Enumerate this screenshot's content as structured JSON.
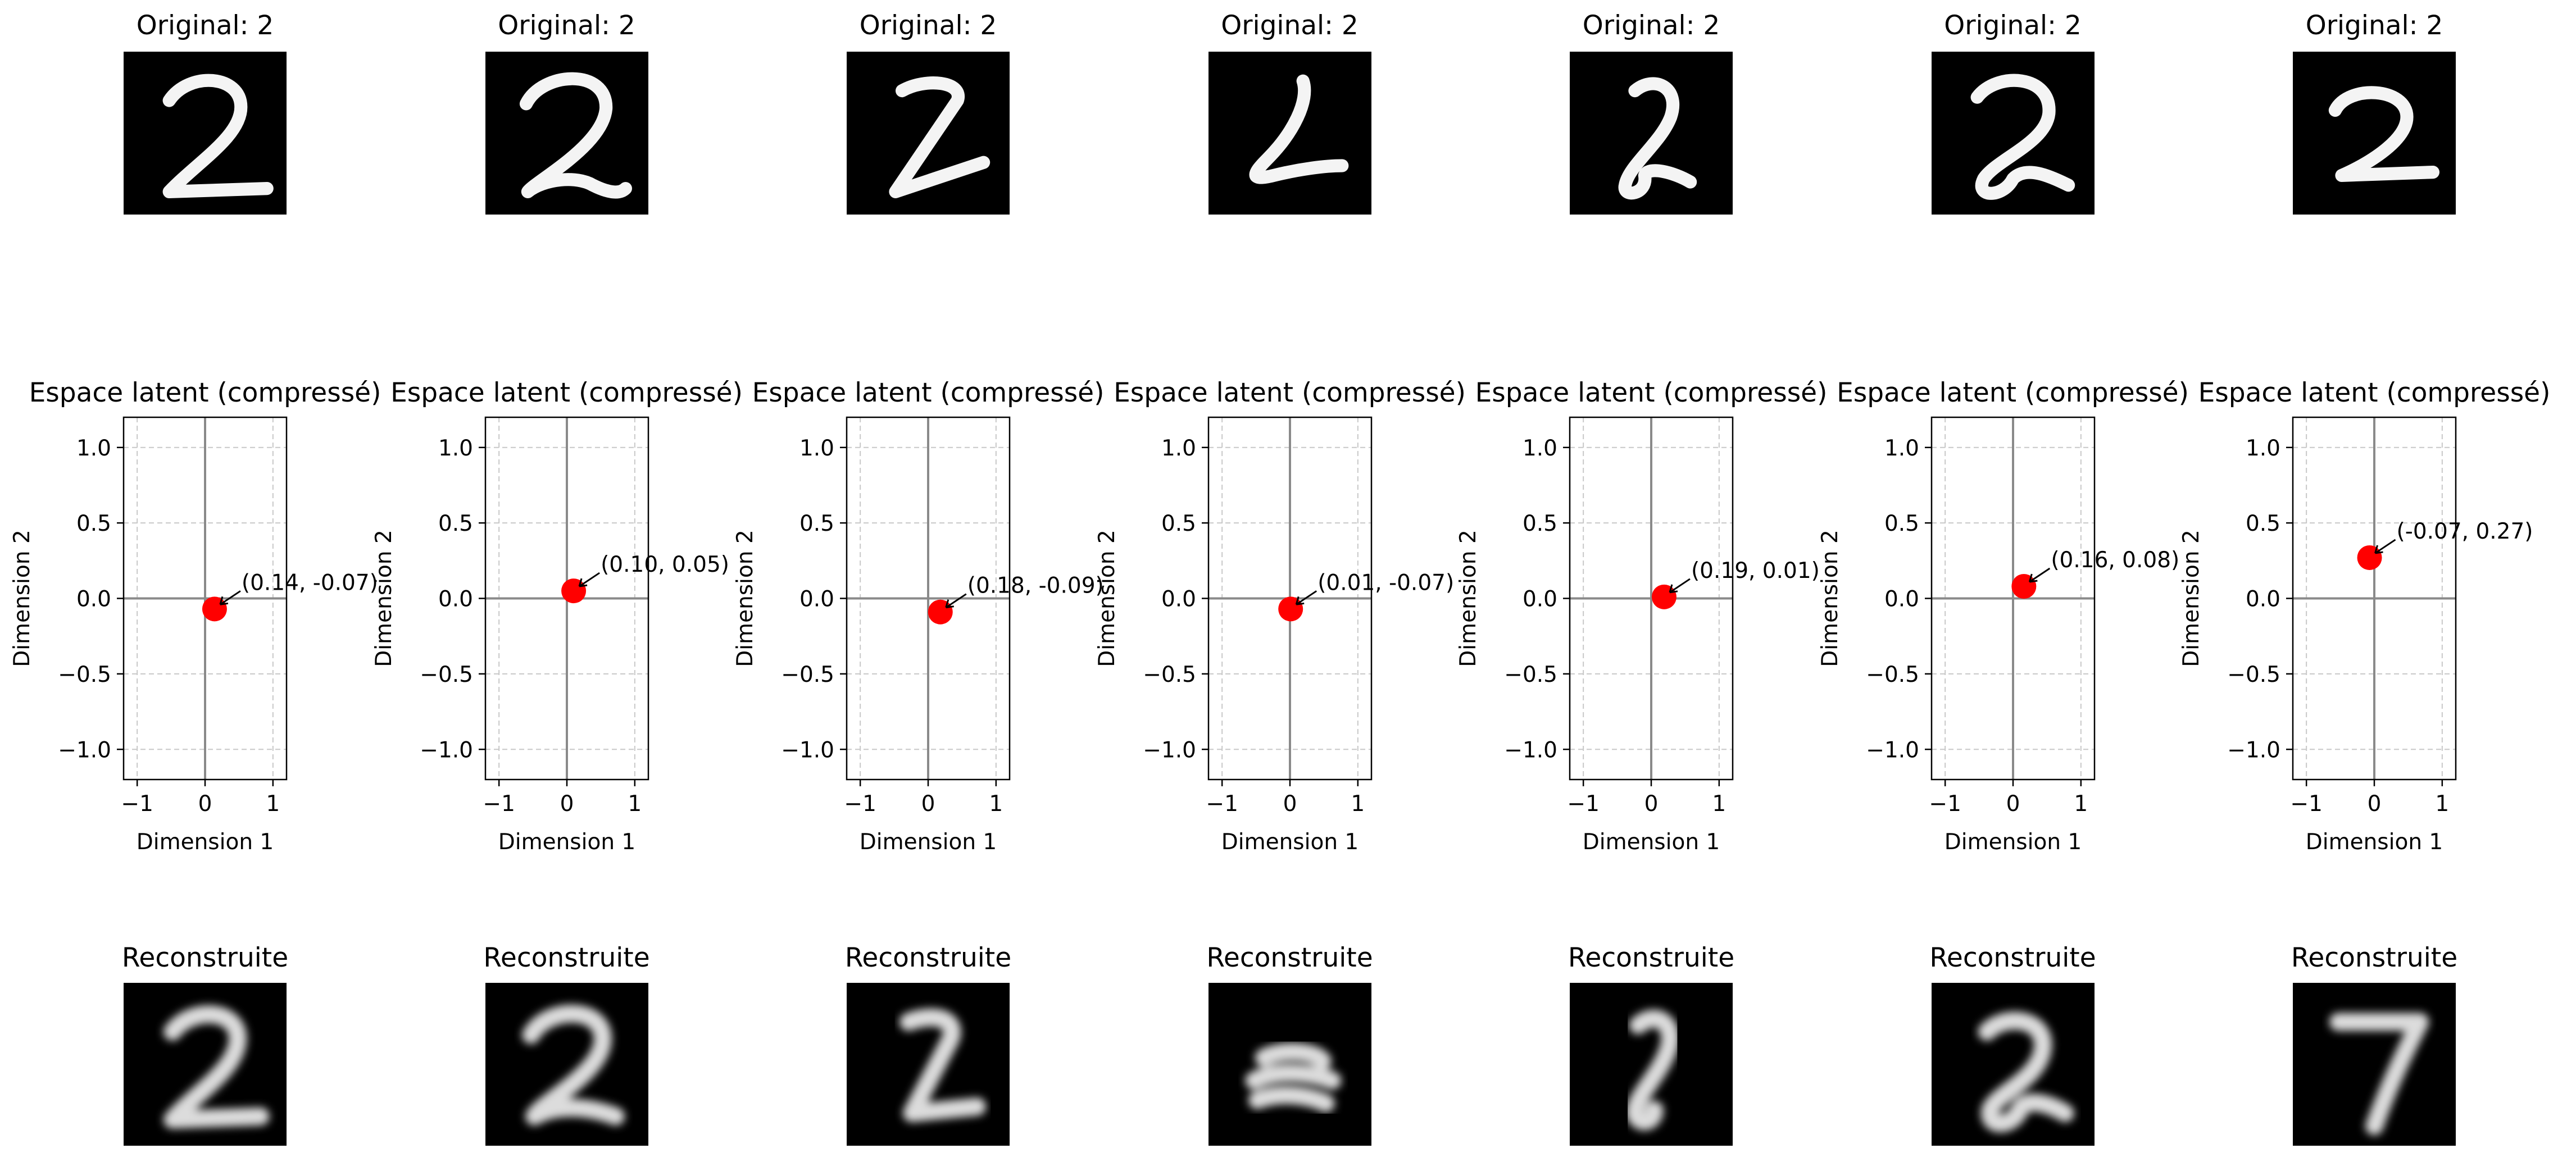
{
  "figure": {
    "original_title": "Original: 2",
    "latent_title": "Espace latent (compressé)",
    "reconstructed_title": "Reconstruite"
  },
  "chart_data": {
    "type": "scatter",
    "xlabel": "Dimension 1",
    "ylabel": "Dimension 2",
    "xlim": [
      -1.2,
      1.2
    ],
    "ylim": [
      -1.2,
      1.2
    ],
    "xticks": [
      -1,
      0,
      1
    ],
    "yticks": [
      1.0,
      0.5,
      0.0,
      -0.5,
      -1.0
    ],
    "xtick_labels": [
      "−1",
      "0",
      "1"
    ],
    "ytick_labels": [
      "1.0",
      "0.5",
      "0.0",
      "−0.5",
      "−1.0"
    ],
    "grid": true,
    "point_color": "#ff0000",
    "points": [
      {
        "x": 0.14,
        "y": -0.07,
        "label": "(0.14, -0.07)"
      },
      {
        "x": 0.1,
        "y": 0.05,
        "label": "(0.10, 0.05)"
      },
      {
        "x": 0.18,
        "y": -0.09,
        "label": "(0.18, -0.09)"
      },
      {
        "x": 0.01,
        "y": -0.07,
        "label": "(0.01, -0.07)"
      },
      {
        "x": 0.19,
        "y": 0.01,
        "label": "(0.19, 0.01)"
      },
      {
        "x": 0.16,
        "y": 0.08,
        "label": "(0.16, 0.08)"
      },
      {
        "x": -0.07,
        "y": 0.27,
        "label": "(-0.07, 0.27)"
      }
    ]
  },
  "reconstructed_digits": [
    "2",
    "2",
    "2",
    "",
    "2",
    "2",
    "7"
  ]
}
